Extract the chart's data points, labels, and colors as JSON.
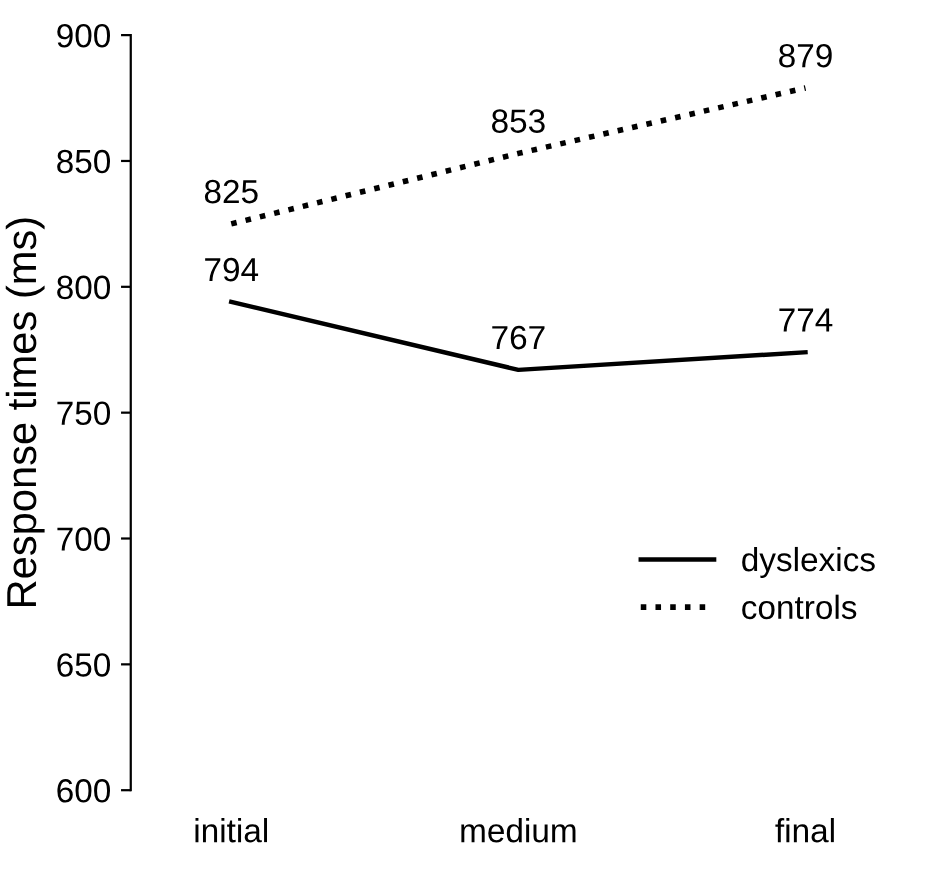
{
  "chart_data": {
    "type": "line",
    "ylabel": "Response times (ms)",
    "categories": [
      "initial",
      "medium",
      "final"
    ],
    "series": [
      {
        "name": "dyslexics",
        "color": "#000000",
        "line_style": "solid",
        "values": [
          794,
          767,
          774
        ]
      },
      {
        "name": "controls",
        "color": "#000000",
        "line_style": "dotted",
        "values": [
          825,
          853,
          879
        ]
      }
    ],
    "ylim": [
      600,
      900
    ],
    "yticks": [
      600,
      650,
      700,
      750,
      800,
      850,
      900
    ],
    "data_labels": true,
    "legend": "right"
  }
}
